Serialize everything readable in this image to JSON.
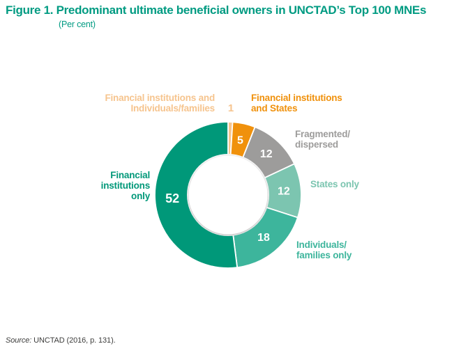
{
  "title": {
    "full": "Figure 1. Predominant ultimate beneficial owners in UNCTAD’s Top 100 MNEs",
    "subtitle": "(Per cent)"
  },
  "source": {
    "label": "Source:",
    "text": " UNCTAD (2016, p. 131)."
  },
  "colors": {
    "title_teal": "#009b82",
    "number_text": "#ffffff",
    "source_text": "#3c3c3b"
  },
  "chart_data": {
    "type": "pie",
    "donut": true,
    "title": "Predominant ultimate beneficial owners in UNCTAD’s Top 100 MNEs",
    "unit": "Per cent",
    "total": 100,
    "start_angle_deg": 0,
    "direction": "clockwise",
    "legend_position": "around",
    "segments": [
      {
        "label": "Financial institutions and Individuals/families",
        "value": 1,
        "color": "#f6c48e"
      },
      {
        "label": "Financial institutions and States",
        "value": 5,
        "color": "#f0910c"
      },
      {
        "label": "Fragmented/dispersed",
        "value": 12,
        "color": "#9d9c9b"
      },
      {
        "label": "States only",
        "value": 12,
        "color": "#7cc5b0"
      },
      {
        "label": "Individuals/families only",
        "value": 18,
        "color": "#3db59c"
      },
      {
        "label": "Financial institutions only",
        "value": 52,
        "color": "#009879"
      }
    ]
  },
  "annotations": [
    {
      "text": "Financial institutions and\nIndividuals/families",
      "value": "1"
    },
    {
      "text": "Financial institutions\nand States"
    },
    {
      "text": "Fragmented/\ndispersed"
    },
    {
      "text": "States only"
    },
    {
      "text": "Individuals/\nfamilies only"
    },
    {
      "text": "Financial\ninstitutions\nonly"
    }
  ]
}
